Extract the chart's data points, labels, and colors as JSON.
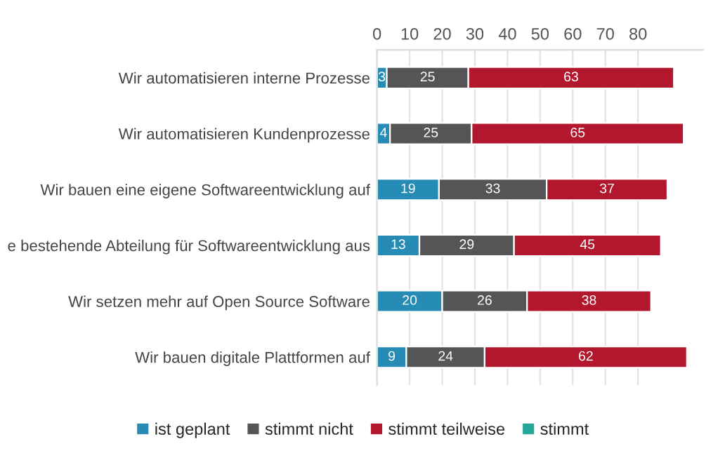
{
  "chart_data": {
    "type": "bar",
    "orientation": "horizontal",
    "stacked": true,
    "categories": [
      "Wir automatisieren interne Prozesse",
      "Wir automatisieren Kundenprozesse",
      "Wir bauen eine eigene Softwareentwicklung auf",
      "e bestehende Abteilung für Softwareentwicklung aus",
      "Wir setzen mehr auf Open Source Software",
      "Wir bauen digitale Plattformen auf"
    ],
    "series": [
      {
        "name": "ist geplant",
        "color": "#268bb5",
        "values": [
          3,
          4,
          19,
          13,
          20,
          9
        ]
      },
      {
        "name": "stimmt nicht",
        "color": "#555555",
        "values": [
          25,
          25,
          33,
          29,
          26,
          24
        ]
      },
      {
        "name": "stimmt teilweise",
        "color": "#b3172d",
        "values": [
          63,
          65,
          37,
          45,
          38,
          62
        ]
      },
      {
        "name": "stimmt",
        "color": "#26a69a",
        "values": [
          null,
          null,
          null,
          null,
          null,
          null
        ]
      }
    ],
    "xlim": [
      0,
      100
    ],
    "xticks": [
      0,
      10,
      20,
      30,
      40,
      50,
      60,
      70,
      80
    ],
    "data_labels": true,
    "grid": "x",
    "legend": "bottom"
  }
}
